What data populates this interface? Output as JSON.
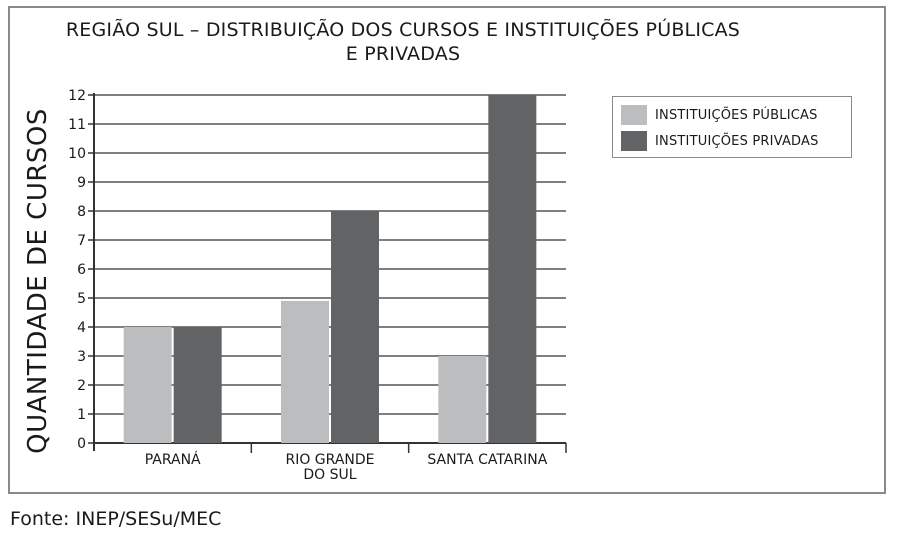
{
  "source": "Fonte: INEP/SESu/MEC",
  "colors": {
    "public": "#bcbdbf",
    "private": "#626365",
    "grid": "#555555",
    "axis": "#333333",
    "frame": "#8a8a8a"
  },
  "chart_data": {
    "type": "bar",
    "title": "REGIÃO SUL – DISTRIBUIÇÃO DOS CURSOS E INSTITUIÇÕES PÚBLICAS",
    "title_line2": "E PRIVADAS",
    "ylabel": "QUANTIDADE DE CURSOS",
    "xlabel": "",
    "ylim": [
      0,
      12
    ],
    "yticks": [
      0,
      1,
      2,
      3,
      4,
      5,
      6,
      7,
      8,
      9,
      10,
      11,
      12
    ],
    "grid": true,
    "legend_position": "top-right",
    "categories": [
      {
        "lines": [
          "PARANÁ"
        ]
      },
      {
        "lines": [
          "RIO GRANDE",
          "DO SUL"
        ]
      },
      {
        "lines": [
          "SANTA CATARINA"
        ]
      }
    ],
    "series": [
      {
        "name": "INSTITUIÇÕES PÚBLICAS",
        "color_key": "public",
        "values": [
          4,
          4.9,
          3
        ]
      },
      {
        "name": "INSTITUIÇÕES PRIVADAS",
        "color_key": "private",
        "values": [
          4,
          8,
          12
        ]
      }
    ]
  }
}
